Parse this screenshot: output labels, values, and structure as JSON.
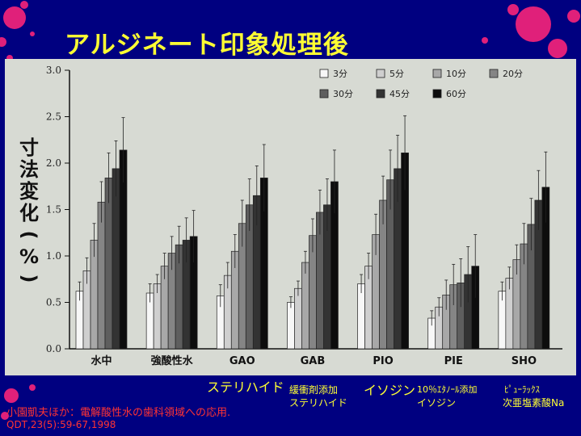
{
  "slide_title": "アルジネート印象処理後",
  "colors": {
    "background": "#000080",
    "title": "#ffff33",
    "citation": "#ff3333",
    "panel": "#d7dad3",
    "splash": "#e0207a"
  },
  "chart_data": {
    "type": "bar",
    "title": "",
    "ylabel": "寸法変化（%）",
    "ylabel_chars": [
      "寸",
      "法",
      "変",
      "化",
      "(",
      "%",
      ")"
    ],
    "ylim": [
      0,
      3.0
    ],
    "yticks": [
      "0.0",
      "0.5",
      "1.0",
      "1.5",
      "2.0",
      "2.5",
      "3.0"
    ],
    "grid": false,
    "legend_position": "top-right",
    "categories": [
      "水中",
      "強酸性水",
      "GAO",
      "GAB",
      "PIO",
      "PIE",
      "SHO"
    ],
    "series": [
      {
        "name": "3分",
        "color": "#f7f7f7",
        "values": [
          0.62,
          0.6,
          0.57,
          0.5,
          0.7,
          0.33,
          0.62
        ],
        "errors": [
          0.1,
          0.1,
          0.12,
          0.06,
          0.1,
          0.08,
          0.1
        ]
      },
      {
        "name": "5分",
        "color": "#cfcfcf",
        "values": [
          0.84,
          0.7,
          0.79,
          0.65,
          0.89,
          0.45,
          0.76
        ],
        "errors": [
          0.14,
          0.1,
          0.14,
          0.08,
          0.14,
          0.1,
          0.12
        ]
      },
      {
        "name": "10分",
        "color": "#a8a8a8",
        "values": [
          1.17,
          0.89,
          1.05,
          0.93,
          1.23,
          0.58,
          0.96
        ],
        "errors": [
          0.18,
          0.14,
          0.18,
          0.12,
          0.22,
          0.16,
          0.16
        ]
      },
      {
        "name": "20分",
        "color": "#858585",
        "values": [
          1.58,
          1.03,
          1.35,
          1.22,
          1.6,
          0.69,
          1.13
        ],
        "errors": [
          0.22,
          0.18,
          0.25,
          0.18,
          0.26,
          0.22,
          0.22
        ]
      },
      {
        "name": "30分",
        "color": "#5e5e5e",
        "values": [
          1.84,
          1.12,
          1.55,
          1.47,
          1.82,
          0.71,
          1.34
        ],
        "errors": [
          0.27,
          0.2,
          0.28,
          0.24,
          0.32,
          0.26,
          0.28
        ]
      },
      {
        "name": "45分",
        "color": "#333333",
        "values": [
          1.94,
          1.17,
          1.65,
          1.55,
          1.94,
          0.8,
          1.6
        ],
        "errors": [
          0.3,
          0.24,
          0.32,
          0.28,
          0.36,
          0.3,
          0.32
        ]
      },
      {
        "name": "60分",
        "color": "#0d0d0d",
        "values": [
          2.14,
          1.21,
          1.84,
          1.8,
          2.11,
          0.89,
          1.74
        ],
        "errors": [
          0.35,
          0.28,
          0.36,
          0.34,
          0.4,
          0.34,
          0.38
        ]
      }
    ]
  },
  "bottom_labels": {
    "sterihyde_main": "ステリハイド",
    "buffer_line1": "緩衝剤添加",
    "buffer_line2": "ステリハイド",
    "isodine_main": "イソジン",
    "ethanol_line1": "10％ｴﾀﾉｰﾙ添加",
    "ethanol_line2": "イソジン",
    "purelox_line1": "ﾋﾟｭｰﾗｯｸｽ",
    "purelox_line2": "次亜塩素酸Na"
  },
  "citation": {
    "line1": "小園凱夫ほか：電解酸性水の歯科領域への応用.",
    "line2": "QDT,23(5):59-67,1998"
  }
}
